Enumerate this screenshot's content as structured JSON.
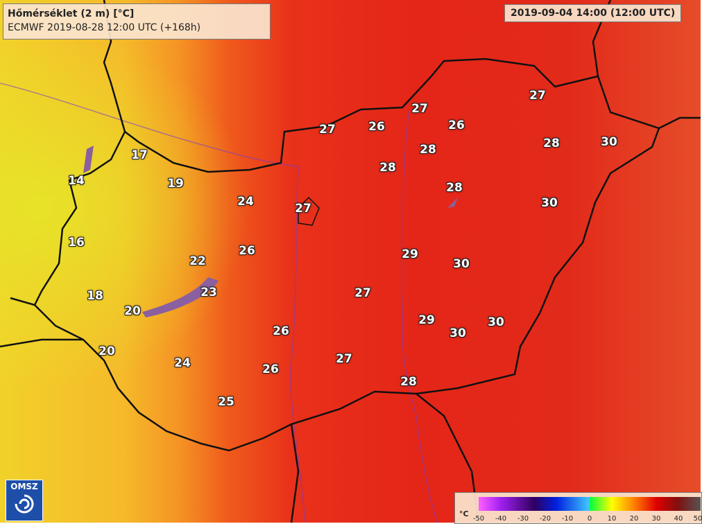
{
  "header": {
    "title": "Hőmérséklet (2 m) [°C]",
    "model_run": "ECMWF 2019-08-28 12:00 UTC (+168h)",
    "valid_time": "2019-09-04 14:00 (12:00 UTC)"
  },
  "labels": [
    "27",
    "26",
    "27",
    "26",
    "27",
    "28",
    "28",
    "30",
    "17",
    "28",
    "14",
    "19",
    "28",
    "24",
    "27",
    "30",
    "16",
    "26",
    "22",
    "29",
    "30",
    "23",
    "18",
    "27",
    "20",
    "29",
    "30",
    "30",
    "26",
    "20",
    "27",
    "24",
    "26",
    "28",
    "25"
  ],
  "legend": {
    "unit": "°C",
    "ticks": [
      "-50",
      "-40",
      "-30",
      "-20",
      "-10",
      "0",
      "10",
      "20",
      "30",
      "40",
      "50"
    ],
    "colors": [
      "#ff60ff",
      "#a020f0",
      "#300060",
      "#0020e0",
      "#40c8ff",
      "#00ff40",
      "#ffff00",
      "#ff8000",
      "#e00000",
      "#801010",
      "#555555"
    ]
  },
  "logo": {
    "text": "OMSZ"
  }
}
